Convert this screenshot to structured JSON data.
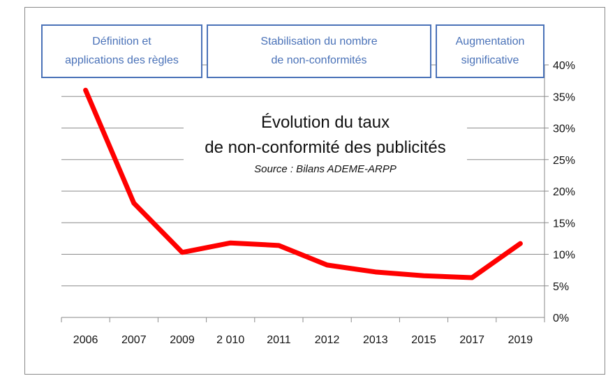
{
  "phases": [
    {
      "label_line1": "Définition et",
      "label_line2": "applications des règles"
    },
    {
      "label_line1": "Stabilisation du nombre",
      "label_line2": "de non-conformités"
    },
    {
      "label_line1": "Augmentation",
      "label_line2": "significative"
    }
  ],
  "chart_data": {
    "type": "line",
    "title_line1": "Évolution du taux",
    "title_line2": "de non-conformité des publicités",
    "subtitle": "Source : Bilans ADEME-ARPP",
    "categories": [
      "2006",
      "2007",
      "2009",
      "2 010",
      "2011",
      "2012",
      "2013",
      "2015",
      "2017",
      "2019"
    ],
    "series": [
      {
        "name": "Taux de non-conformité",
        "color": "#ff0000",
        "values": [
          36,
          18.1,
          10.3,
          11.8,
          11.4,
          8.3,
          7.2,
          6.6,
          6.3,
          11.7
        ]
      }
    ],
    "ylim": [
      0,
      40
    ],
    "yticks": [
      "0%",
      "5%",
      "10%",
      "15%",
      "20%",
      "25%",
      "30%",
      "35%",
      "40%"
    ],
    "y_axis_position": "right",
    "grid": true
  }
}
